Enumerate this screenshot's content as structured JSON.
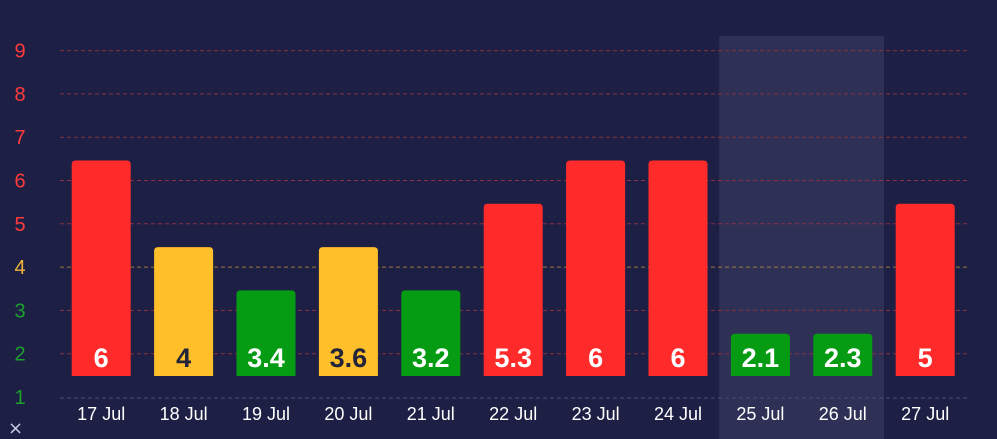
{
  "chart_data": {
    "type": "bar",
    "categories": [
      "17 Jul",
      "18 Jul",
      "19 Jul",
      "20 Jul",
      "21 Jul",
      "22 Jul",
      "23 Jul",
      "24 Jul",
      "25 Jul",
      "26 Jul",
      "27 Jul"
    ],
    "values": [
      6,
      4,
      3.4,
      3.6,
      3.2,
      5.3,
      6,
      6,
      2.1,
      2.3,
      5
    ],
    "value_labels": [
      "6",
      "4",
      "3.4",
      "3.6",
      "3.2",
      "5.3",
      "6",
      "6",
      "2.1",
      "2.3",
      "5"
    ],
    "bar_heights": [
      6,
      4,
      3,
      4,
      3,
      5,
      6,
      6,
      2,
      2,
      5
    ],
    "bar_colors": [
      "#ff2b2b",
      "#ffbf2b",
      "#059c13",
      "#ffbf2b",
      "#059c13",
      "#ff2b2b",
      "#ff2b2b",
      "#ff2b2b",
      "#059c13",
      "#059c13",
      "#ff2b2b"
    ],
    "label_colors": [
      "#ffffff",
      "#23243a",
      "#ffffff",
      "#23243a",
      "#ffffff",
      "#ffffff",
      "#ffffff",
      "#ffffff",
      "#ffffff",
      "#ffffff",
      "#ffffff"
    ],
    "highlighted_categories": [
      "25 Jul",
      "26 Jul"
    ],
    "yticks": [
      "1",
      "2",
      "3",
      "4",
      "5",
      "6",
      "7",
      "8",
      "9"
    ],
    "ytick_colors": [
      "#1aa32a",
      "#1aa32a",
      "#1aa32a",
      "#f0b43c",
      "#ff3b3b",
      "#ff3b3b",
      "#ff3b3b",
      "#ff3b3b",
      "#ff3b3b"
    ],
    "ylim": [
      0.5,
      9.5
    ],
    "grid": true,
    "title": "",
    "xlabel": "",
    "ylabel": ""
  },
  "corner_glyph": "×",
  "colors": {
    "background": "#1d1f44",
    "highlight_band": "#2e3056",
    "grid_red": "#8a3040",
    "grid_yellow": "#9a7a3a",
    "axis_line": "#4a4c72"
  }
}
